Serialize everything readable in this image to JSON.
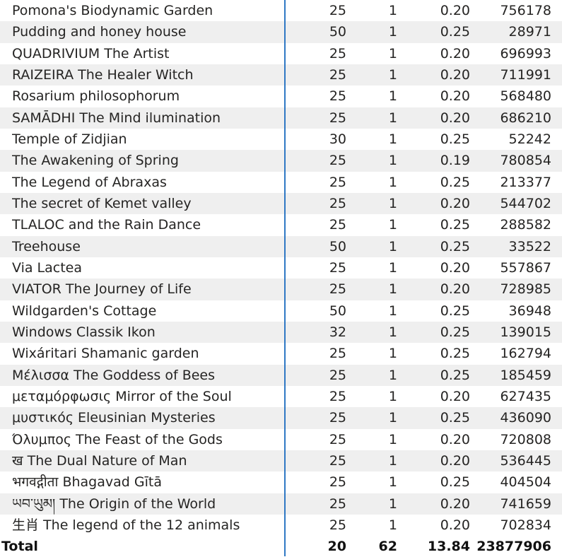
{
  "rows": [
    {
      "name": "Pomona's Biodynamic Garden",
      "a": "25",
      "b": "1",
      "c": "0.20",
      "d": "756178"
    },
    {
      "name": "Pudding and honey house",
      "a": "50",
      "b": "1",
      "c": "0.25",
      "d": "28971"
    },
    {
      "name": "QUADRIVIUM The Artist",
      "a": "25",
      "b": "1",
      "c": "0.20",
      "d": "696993"
    },
    {
      "name": "RAIZEIRA The Healer Witch",
      "a": "25",
      "b": "1",
      "c": "0.20",
      "d": "711991"
    },
    {
      "name": "Rosarium philosophorum",
      "a": "25",
      "b": "1",
      "c": "0.20",
      "d": "568480"
    },
    {
      "name": "SAMĀDHI The Mind ilumination",
      "a": "25",
      "b": "1",
      "c": "0.20",
      "d": "686210"
    },
    {
      "name": "Temple of Zidjian",
      "a": "30",
      "b": "1",
      "c": "0.25",
      "d": "52242"
    },
    {
      "name": "The Awakening of Spring",
      "a": "25",
      "b": "1",
      "c": "0.19",
      "d": "780854"
    },
    {
      "name": "The Legend of Abraxas",
      "a": "25",
      "b": "1",
      "c": "0.25",
      "d": "213377"
    },
    {
      "name": "The secret of Kemet valley",
      "a": "25",
      "b": "1",
      "c": "0.20",
      "d": "544702"
    },
    {
      "name": "TLALOC and the Rain Dance",
      "a": "25",
      "b": "1",
      "c": "0.25",
      "d": "288582"
    },
    {
      "name": "Treehouse",
      "a": "50",
      "b": "1",
      "c": "0.25",
      "d": "33522"
    },
    {
      "name": "Via Lactea",
      "a": "25",
      "b": "1",
      "c": "0.20",
      "d": "557867"
    },
    {
      "name": "VIATOR The Journey of Life",
      "a": "25",
      "b": "1",
      "c": "0.20",
      "d": "728985"
    },
    {
      "name": "Wildgarden's Cottage",
      "a": "50",
      "b": "1",
      "c": "0.25",
      "d": "36948"
    },
    {
      "name": "Windows Classik Ikon",
      "a": "32",
      "b": "1",
      "c": "0.25",
      "d": "139015"
    },
    {
      "name": "Wixáritari Shamanic garden",
      "a": "25",
      "b": "1",
      "c": "0.25",
      "d": "162794"
    },
    {
      "name": "Μέλισσα The Goddess of Bees",
      "a": "25",
      "b": "1",
      "c": "0.25",
      "d": "185459"
    },
    {
      "name": "μεταμόρφωσις Mirror of the Soul",
      "a": "25",
      "b": "1",
      "c": "0.20",
      "d": "627435"
    },
    {
      "name": "μυστικός Eleusinian Mysteries",
      "a": "25",
      "b": "1",
      "c": "0.25",
      "d": "436090"
    },
    {
      "name": "Όλυμπος The Feast of the Gods",
      "a": "25",
      "b": "1",
      "c": "0.20",
      "d": "720808"
    },
    {
      "name": "ख The Dual Nature of Man",
      "a": "25",
      "b": "1",
      "c": "0.20",
      "d": "536445"
    },
    {
      "name": "भगवद्गीता Bhagavad Gītā",
      "a": "25",
      "b": "1",
      "c": "0.25",
      "d": "404504"
    },
    {
      "name": "ཡབ་ཡུམ། The Origin of the World",
      "a": "25",
      "b": "1",
      "c": "0.20",
      "d": "741659"
    },
    {
      "name": "生肖 The legend of the 12 animals",
      "a": "25",
      "b": "1",
      "c": "0.20",
      "d": "702834"
    }
  ],
  "total": {
    "label": "Total",
    "a": "20",
    "b": "62",
    "c": "13.84",
    "d": "23877906"
  },
  "colors": {
    "divider": "#2f78c4",
    "row_alt": "#efefef"
  }
}
